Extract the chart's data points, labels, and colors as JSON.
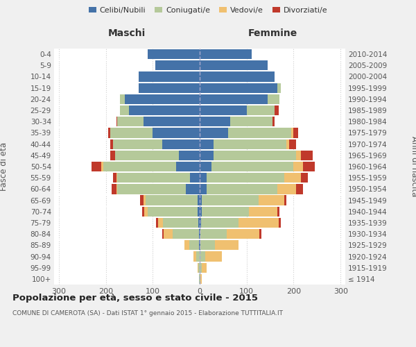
{
  "age_groups": [
    "100+",
    "95-99",
    "90-94",
    "85-89",
    "80-84",
    "75-79",
    "70-74",
    "65-69",
    "60-64",
    "55-59",
    "50-54",
    "45-49",
    "40-44",
    "35-39",
    "30-34",
    "25-29",
    "20-24",
    "15-19",
    "10-14",
    "5-9",
    "0-4"
  ],
  "birth_years": [
    "≤ 1914",
    "1915-1919",
    "1920-1924",
    "1925-1929",
    "1930-1934",
    "1935-1939",
    "1940-1944",
    "1945-1949",
    "1950-1954",
    "1955-1959",
    "1960-1964",
    "1965-1969",
    "1970-1974",
    "1975-1979",
    "1980-1984",
    "1985-1989",
    "1990-1994",
    "1995-1999",
    "2000-2004",
    "2005-2009",
    "2010-2014"
  ],
  "male": {
    "celibi": [
      0,
      0,
      0,
      2,
      2,
      3,
      5,
      5,
      30,
      20,
      50,
      45,
      80,
      100,
      120,
      150,
      160,
      130,
      130,
      95,
      110
    ],
    "coniugati": [
      2,
      3,
      8,
      20,
      55,
      75,
      105,
      110,
      145,
      155,
      155,
      135,
      105,
      90,
      55,
      20,
      10,
      0,
      0,
      0,
      0
    ],
    "vedovi": [
      0,
      2,
      5,
      10,
      20,
      10,
      8,
      5,
      2,
      2,
      5,
      0,
      0,
      0,
      0,
      0,
      0,
      0,
      0,
      0,
      0
    ],
    "divorziati": [
      0,
      0,
      0,
      0,
      2,
      5,
      5,
      7,
      10,
      8,
      20,
      10,
      5,
      5,
      2,
      0,
      0,
      0,
      0,
      0,
      0
    ]
  },
  "female": {
    "nubili": [
      0,
      0,
      0,
      2,
      2,
      3,
      5,
      5,
      15,
      15,
      25,
      30,
      30,
      60,
      65,
      100,
      145,
      165,
      160,
      145,
      110
    ],
    "coniugate": [
      2,
      5,
      12,
      30,
      55,
      80,
      100,
      120,
      150,
      165,
      175,
      175,
      155,
      135,
      90,
      60,
      25,
      8,
      0,
      0,
      0
    ],
    "vedove": [
      2,
      10,
      35,
      50,
      70,
      85,
      60,
      55,
      40,
      35,
      20,
      10,
      5,
      5,
      0,
      0,
      0,
      0,
      0,
      0,
      0
    ],
    "divorziate": [
      0,
      0,
      0,
      0,
      5,
      5,
      5,
      5,
      15,
      15,
      25,
      25,
      15,
      10,
      5,
      8,
      0,
      0,
      0,
      0,
      0
    ]
  },
  "colors": {
    "celibi": "#4472a8",
    "coniugati": "#b5c99a",
    "vedovi": "#f0c070",
    "divorziati": "#c0392b"
  },
  "legend_labels": [
    "Celibi/Nubili",
    "Coniugati/e",
    "Vedovi/e",
    "Divorziati/e"
  ],
  "title": "Popolazione per età, sesso e stato civile - 2015",
  "subtitle": "COMUNE DI CAMEROTA (SA) - Dati ISTAT 1° gennaio 2015 - Elaborazione TUTTITALIA.IT",
  "xlabel_left": "Maschi",
  "xlabel_right": "Femmine",
  "ylabel_left": "Fasce di età",
  "ylabel_right": "Anni di nascita",
  "xlim": 310,
  "bg_color": "#f0f0f0",
  "plot_bg_color": "#ffffff",
  "grid_color": "#cccccc"
}
